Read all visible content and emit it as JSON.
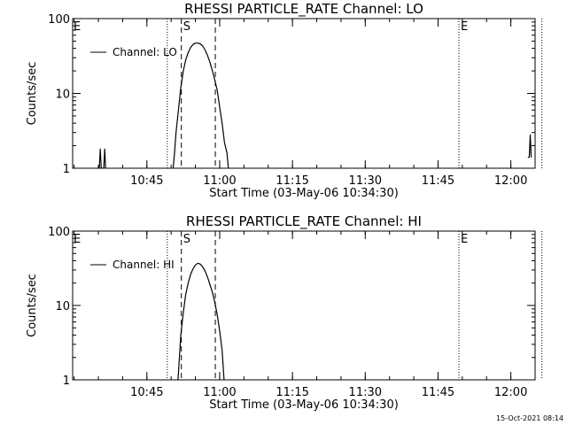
{
  "page": {
    "timestamp": "15-Oct-2021 08:14"
  },
  "chart_data": [
    {
      "type": "line",
      "title": "RHESSI PARTICLE_RATE Channel: LO",
      "xlabel": "Start Time (03-May-06 10:34:30)",
      "ylabel": "Counts/sec",
      "yscale": "log",
      "ylim": [
        1,
        100
      ],
      "xlim_min": [
        -4.8,
        90.5
      ],
      "x_ticks_min": [
        10.5,
        25.5,
        40.5,
        55.5,
        70.5,
        85.5
      ],
      "x_tick_labels": [
        "10:45",
        "11:00",
        "11:15",
        "11:30",
        "11:45",
        "12:00"
      ],
      "y_ticks": [
        1,
        10,
        100
      ],
      "y_tick_labels": [
        "1",
        "10",
        "100"
      ],
      "legend": {
        "position": "top-left",
        "label": "Channel: LO"
      },
      "markers": [
        {
          "x_min": 14.7,
          "style": "dotted",
          "label": ""
        },
        {
          "x_min": 17.6,
          "style": "dashed",
          "label": "S"
        },
        {
          "x_min": 24.6,
          "style": "dashed",
          "label": ""
        },
        {
          "x_min": 74.8,
          "style": "dotted",
          "label": "E"
        },
        {
          "x_min": 91.9,
          "style": "dotted",
          "label": ""
        }
      ],
      "corner_label": "E",
      "series": [
        {
          "segments": [
            [
              [
                0.7,
                1
              ],
              [
                0.9,
                1.8
              ],
              [
                1.1,
                1
              ]
            ],
            [
              [
                1.6,
                1
              ],
              [
                1.8,
                1.8
              ],
              [
                2.0,
                1
              ]
            ],
            [
              [
                15.9,
                1
              ],
              [
                16.2,
                1.6
              ],
              [
                16.5,
                3.0
              ],
              [
                17.0,
                6.0
              ],
              [
                17.5,
                12
              ],
              [
                18.0,
                20
              ],
              [
                18.5,
                28
              ],
              [
                19.0,
                35
              ],
              [
                19.5,
                41
              ],
              [
                20.0,
                45
              ],
              [
                20.5,
                47
              ],
              [
                21.0,
                47
              ],
              [
                21.5,
                46
              ],
              [
                22.0,
                43
              ],
              [
                22.5,
                38
              ],
              [
                23.0,
                32
              ],
              [
                23.5,
                26
              ],
              [
                24.0,
                20
              ],
              [
                24.5,
                15
              ],
              [
                25.0,
                11
              ],
              [
                25.5,
                6.5
              ],
              [
                26.0,
                4.0
              ],
              [
                26.5,
                2.2
              ],
              [
                27.0,
                1.6
              ],
              [
                27.3,
                1
              ]
            ],
            [
              [
                89.0,
                1.4
              ],
              [
                89.3,
                1.4
              ],
              [
                89.5,
                2.8
              ],
              [
                89.7,
                1.4
              ]
            ]
          ]
        }
      ]
    },
    {
      "type": "line",
      "title": "RHESSI PARTICLE_RATE Channel: HI",
      "xlabel": "Start Time (03-May-06 10:34:30)",
      "ylabel": "Counts/sec",
      "yscale": "log",
      "ylim": [
        1,
        100
      ],
      "xlim_min": [
        -4.8,
        90.5
      ],
      "x_ticks_min": [
        10.5,
        25.5,
        40.5,
        55.5,
        70.5,
        85.5
      ],
      "x_tick_labels": [
        "10:45",
        "11:00",
        "11:15",
        "11:30",
        "11:45",
        "12:00"
      ],
      "y_ticks": [
        1,
        10,
        100
      ],
      "y_tick_labels": [
        "1",
        "10",
        "100"
      ],
      "legend": {
        "position": "top-left",
        "label": "Channel: HI"
      },
      "markers": [
        {
          "x_min": 14.7,
          "style": "dotted",
          "label": ""
        },
        {
          "x_min": 17.6,
          "style": "dashed",
          "label": "S"
        },
        {
          "x_min": 24.6,
          "style": "dashed",
          "label": ""
        },
        {
          "x_min": 74.8,
          "style": "dotted",
          "label": "E"
        },
        {
          "x_min": 91.9,
          "style": "dotted",
          "label": ""
        }
      ],
      "corner_label": "E",
      "series": [
        {
          "segments": [
            [
              [
                16.9,
                1
              ],
              [
                17.2,
                2.0
              ],
              [
                17.5,
                4.0
              ],
              [
                18.0,
                8.0
              ],
              [
                18.5,
                14
              ],
              [
                19.0,
                20
              ],
              [
                19.5,
                26
              ],
              [
                20.0,
                31
              ],
              [
                20.5,
                35
              ],
              [
                21.0,
                37
              ],
              [
                21.5,
                36
              ],
              [
                22.0,
                33
              ],
              [
                22.5,
                29
              ],
              [
                23.0,
                24
              ],
              [
                23.5,
                19
              ],
              [
                24.0,
                15
              ],
              [
                24.5,
                11
              ],
              [
                25.0,
                7.5
              ],
              [
                25.5,
                4.5
              ],
              [
                26.0,
                2.5
              ],
              [
                26.4,
                1
              ]
            ]
          ]
        }
      ]
    }
  ]
}
